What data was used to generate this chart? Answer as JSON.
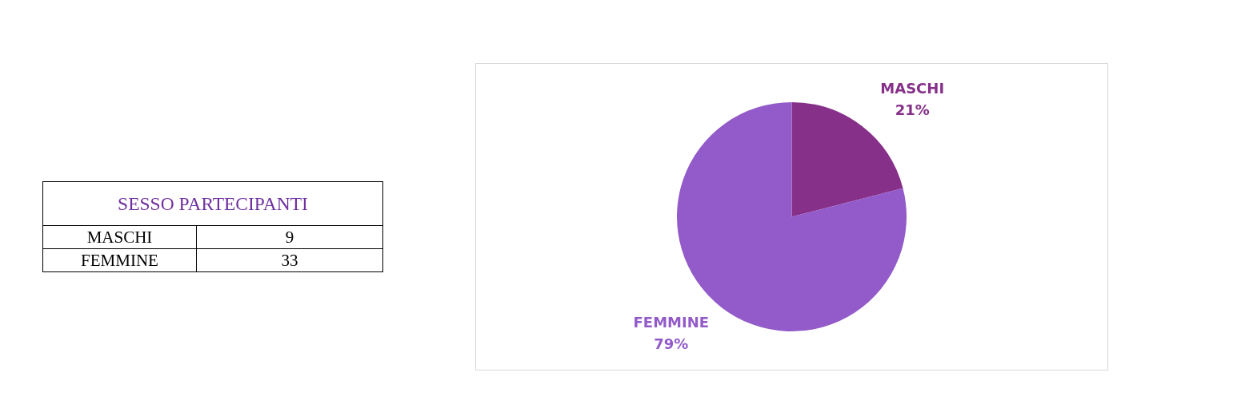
{
  "chart_data": [
    {
      "type": "other",
      "title": "SESSO PARTECIPANTI",
      "categories": [
        "MASCHI",
        "FEMMINE"
      ],
      "values": [
        9,
        33
      ],
      "data_labels": true
    },
    {
      "type": "pie",
      "categories": [
        "MASCHI",
        "FEMMINE"
      ],
      "values": [
        21,
        79
      ],
      "colors": [
        "#86308a",
        "#935bc9"
      ],
      "value_labels": [
        "21%",
        "79%"
      ]
    }
  ]
}
